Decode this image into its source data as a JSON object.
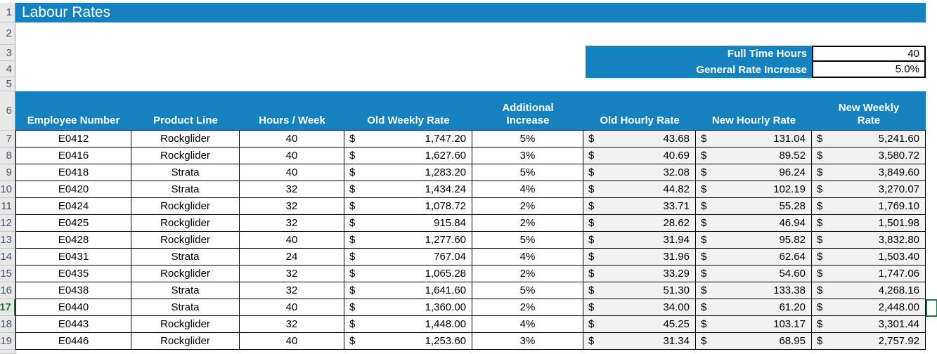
{
  "sheet": {
    "title": "Labour Rates",
    "row_numbers": [
      "1",
      "2",
      "3",
      "4",
      "5",
      "6",
      "7",
      "8",
      "9",
      "10",
      "11",
      "12",
      "13",
      "14",
      "15",
      "16",
      "17",
      "18",
      "19"
    ],
    "active_row": "17"
  },
  "settings_box": {
    "rows": [
      {
        "label": "Full Time Hours",
        "value": "40"
      },
      {
        "label": "General Rate Increase",
        "value": "5.0%"
      }
    ]
  },
  "table": {
    "headers": [
      "Employee Number",
      "Product Line",
      "Hours / Week",
      "Old Weekly Rate",
      "Additional\nIncrease",
      "Old Hourly Rate",
      "New Hourly Rate",
      "New Weekly\nRate"
    ],
    "currency_symbol": "$",
    "rows": [
      {
        "employee": "E0412",
        "product": "Rockglider",
        "hours": "40",
        "old_weekly": "1,747.20",
        "increase": "5%",
        "old_hourly": "43.68",
        "new_hourly": "131.04",
        "new_weekly": "5,241.60"
      },
      {
        "employee": "E0416",
        "product": "Rockglider",
        "hours": "40",
        "old_weekly": "1,627.60",
        "increase": "3%",
        "old_hourly": "40.69",
        "new_hourly": "89.52",
        "new_weekly": "3,580.72"
      },
      {
        "employee": "E0418",
        "product": "Strata",
        "hours": "40",
        "old_weekly": "1,283.20",
        "increase": "5%",
        "old_hourly": "32.08",
        "new_hourly": "96.24",
        "new_weekly": "3,849.60"
      },
      {
        "employee": "E0420",
        "product": "Strata",
        "hours": "32",
        "old_weekly": "1,434.24",
        "increase": "4%",
        "old_hourly": "44.82",
        "new_hourly": "102.19",
        "new_weekly": "3,270.07"
      },
      {
        "employee": "E0424",
        "product": "Rockglider",
        "hours": "32",
        "old_weekly": "1,078.72",
        "increase": "2%",
        "old_hourly": "33.71",
        "new_hourly": "55.28",
        "new_weekly": "1,769.10"
      },
      {
        "employee": "E0425",
        "product": "Rockglider",
        "hours": "32",
        "old_weekly": "915.84",
        "increase": "2%",
        "old_hourly": "28.62",
        "new_hourly": "46.94",
        "new_weekly": "1,501.98"
      },
      {
        "employee": "E0428",
        "product": "Rockglider",
        "hours": "40",
        "old_weekly": "1,277.60",
        "increase": "5%",
        "old_hourly": "31.94",
        "new_hourly": "95.82",
        "new_weekly": "3,832.80"
      },
      {
        "employee": "E0431",
        "product": "Strata",
        "hours": "24",
        "old_weekly": "767.04",
        "increase": "4%",
        "old_hourly": "31.96",
        "new_hourly": "62.64",
        "new_weekly": "1,503.40"
      },
      {
        "employee": "E0435",
        "product": "Rockglider",
        "hours": "32",
        "old_weekly": "1,065.28",
        "increase": "2%",
        "old_hourly": "33.29",
        "new_hourly": "54.60",
        "new_weekly": "1,747.06"
      },
      {
        "employee": "E0438",
        "product": "Strata",
        "hours": "32",
        "old_weekly": "1,641.60",
        "increase": "5%",
        "old_hourly": "51.30",
        "new_hourly": "133.38",
        "new_weekly": "4,268.16"
      },
      {
        "employee": "E0440",
        "product": "Strata",
        "hours": "40",
        "old_weekly": "1,360.00",
        "increase": "2%",
        "old_hourly": "34.00",
        "new_hourly": "61.20",
        "new_weekly": "2,448.00"
      },
      {
        "employee": "E0443",
        "product": "Rockglider",
        "hours": "32",
        "old_weekly": "1,448.00",
        "increase": "4%",
        "old_hourly": "45.25",
        "new_hourly": "103.17",
        "new_weekly": "3,301.44"
      },
      {
        "employee": "E0446",
        "product": "Rockglider",
        "hours": "40",
        "old_weekly": "1,253.60",
        "increase": "3%",
        "old_hourly": "31.34",
        "new_hourly": "68.95",
        "new_weekly": "2,757.92"
      }
    ]
  },
  "colors": {
    "accent_blue": "#1581BE",
    "selection_green": "#1E7145",
    "money_column_fill": "#F2F2F2"
  }
}
